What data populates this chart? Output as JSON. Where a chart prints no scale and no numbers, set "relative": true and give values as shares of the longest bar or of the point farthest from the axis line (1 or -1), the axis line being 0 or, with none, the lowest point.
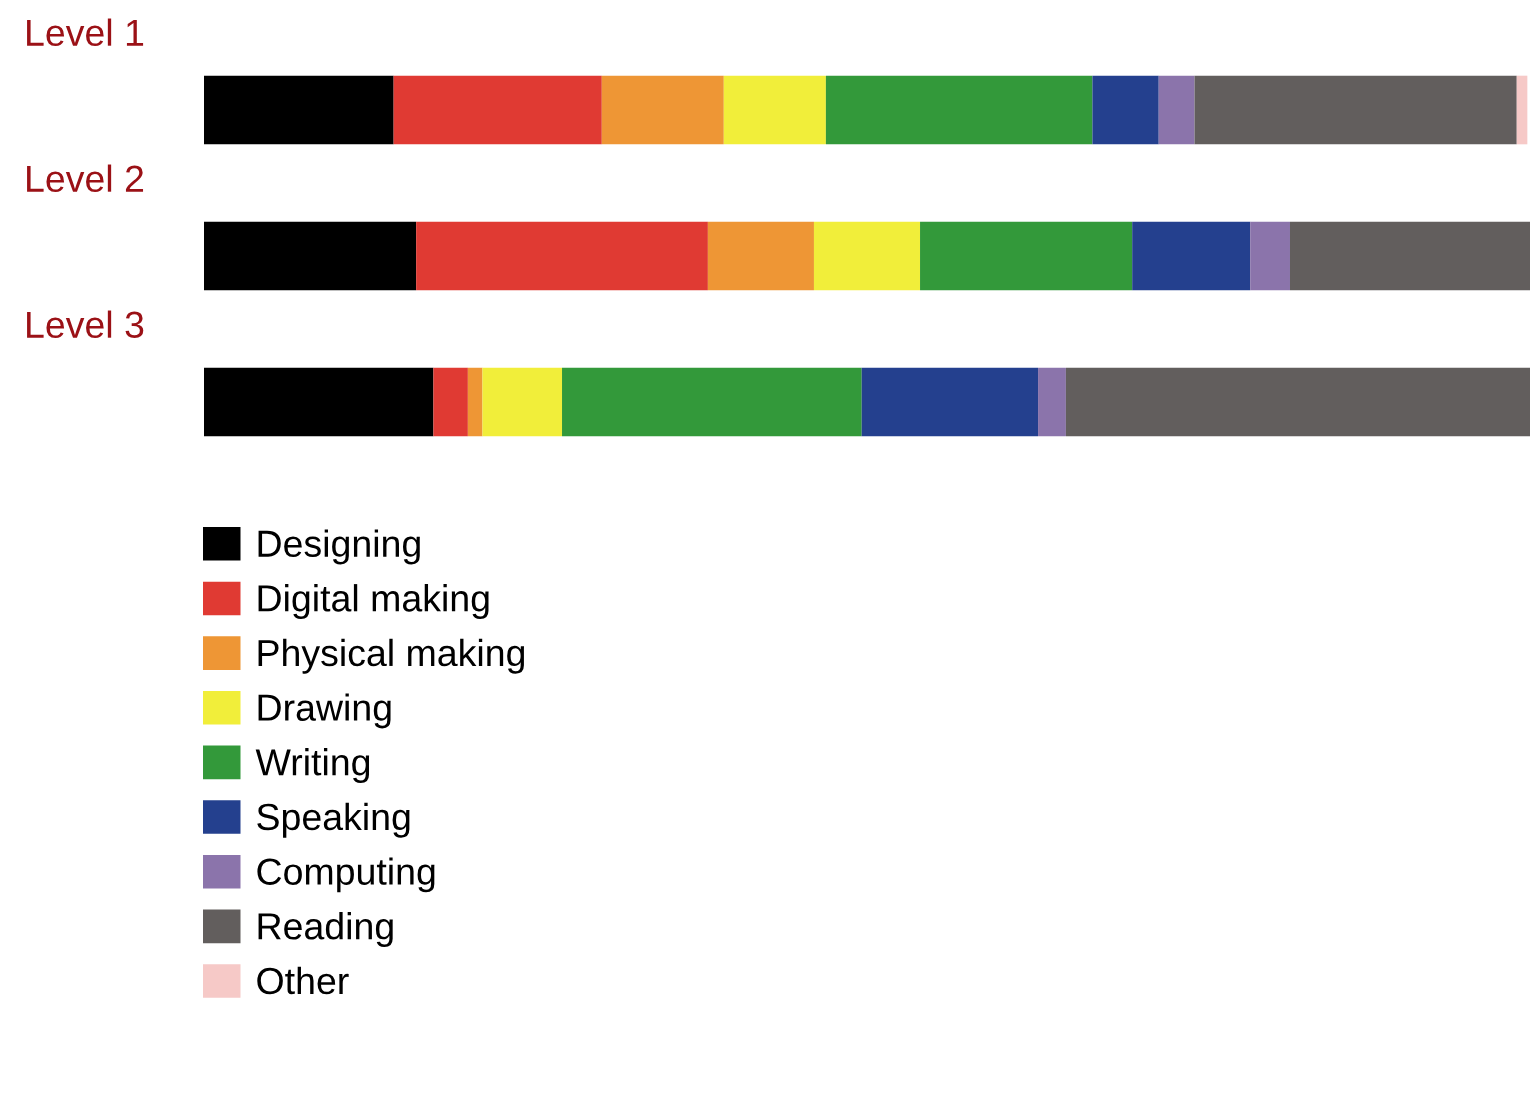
{
  "chart_data": {
    "type": "bar",
    "orientation": "horizontal",
    "stacked": true,
    "relative": true,
    "legend": "bottom",
    "categories": [
      "Level 1",
      "Level 2",
      "Level 3"
    ],
    "series": [
      {
        "name": "Designing",
        "color": "#000000",
        "values": [
          0.143,
          0.16,
          0.173
        ]
      },
      {
        "name": "Digital making",
        "color": "#e03a33",
        "values": [
          0.157,
          0.22,
          0.026
        ]
      },
      {
        "name": "Physical making",
        "color": "#ee9635",
        "values": [
          0.092,
          0.08,
          0.011
        ]
      },
      {
        "name": "Drawing",
        "color": "#f1ee3a",
        "values": [
          0.077,
          0.08,
          0.06
        ]
      },
      {
        "name": "Writing",
        "color": "#33993a",
        "values": [
          0.201,
          0.16,
          0.226
        ]
      },
      {
        "name": "Speaking",
        "color": "#24408e",
        "values": [
          0.05,
          0.089,
          0.133
        ]
      },
      {
        "name": "Computing",
        "color": "#8b74ab",
        "values": [
          0.027,
          0.03,
          0.021
        ]
      },
      {
        "name": "Reading",
        "color": "#625e5d",
        "values": [
          0.243,
          0.181,
          0.35
        ]
      },
      {
        "name": "Other",
        "color": "#f6c9c7",
        "values": [
          0.008,
          0,
          0
        ]
      }
    ]
  }
}
